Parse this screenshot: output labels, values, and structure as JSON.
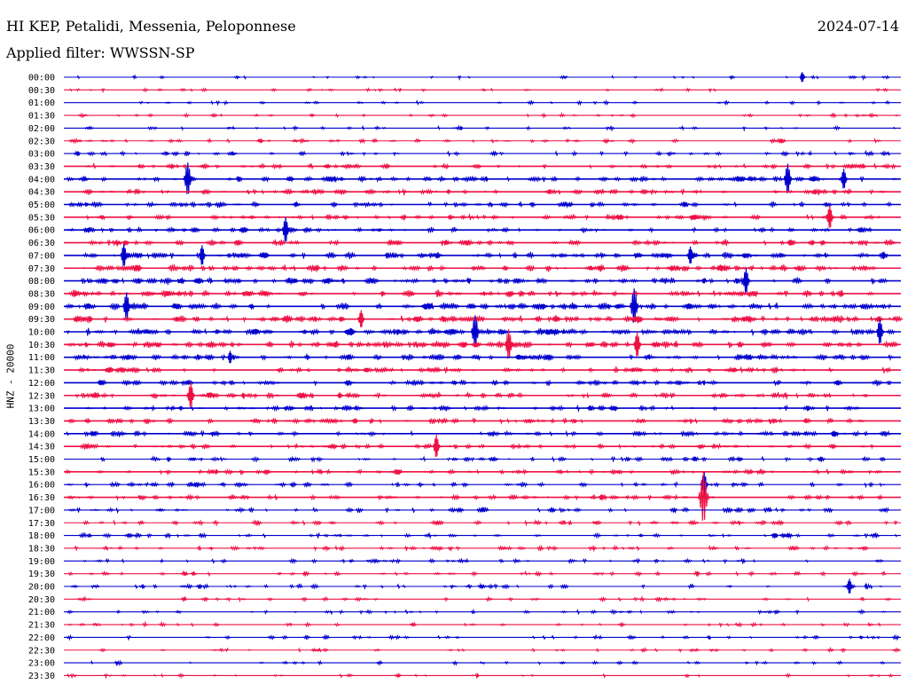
{
  "header": {
    "station": "HI KEP, Petalidi, Messenia, Peloponnese",
    "date": "2024-07-14",
    "filter": "Applied filter: WWSSN-SP"
  },
  "chart_data": {
    "type": "line",
    "title": "HI KEP, Petalidi, Messenia, Peloponnese",
    "subtitle": "Applied filter: WWSSN-SP",
    "date": "2024-07-14",
    "ylabel": "HNZ - 20000",
    "xlabel": "",
    "grid": false,
    "series_colors": [
      "#0000cc",
      "#ee1144"
    ],
    "row_labels": [
      "00:00",
      "00:30",
      "01:00",
      "01:30",
      "02:00",
      "02:30",
      "03:00",
      "03:30",
      "04:00",
      "04:30",
      "05:00",
      "05:30",
      "06:00",
      "06:30",
      "07:00",
      "07:30",
      "08:00",
      "08:30",
      "09:00",
      "09:30",
      "10:00",
      "10:30",
      "11:00",
      "11:30",
      "12:00",
      "12:30",
      "13:00",
      "13:30",
      "14:00",
      "14:30",
      "15:00",
      "15:30",
      "16:00",
      "16:30",
      "17:00",
      "17:30",
      "18:00",
      "18:30",
      "19:00",
      "19:30",
      "20:00",
      "20:30",
      "21:00",
      "21:30",
      "22:00",
      "22:30",
      "23:00",
      "23:30"
    ],
    "row_activity": [
      0.2,
      0.2,
      0.2,
      0.25,
      0.25,
      0.35,
      0.4,
      0.55,
      0.7,
      0.65,
      0.6,
      0.6,
      0.65,
      0.7,
      0.85,
      0.85,
      0.8,
      0.85,
      0.85,
      0.9,
      0.9,
      0.85,
      0.75,
      0.7,
      0.65,
      0.7,
      0.6,
      0.6,
      0.6,
      0.55,
      0.5,
      0.55,
      0.5,
      0.55,
      0.5,
      0.45,
      0.5,
      0.45,
      0.4,
      0.35,
      0.4,
      0.3,
      0.3,
      0.3,
      0.3,
      0.25,
      0.2,
      0.2
    ],
    "events": [
      {
        "row": "00:00",
        "minute": 26.5,
        "amp": 0.4
      },
      {
        "row": "05:30",
        "minute": 27.5,
        "amp": 0.9
      },
      {
        "row": "04:00",
        "minute": 4.5,
        "amp": 1.3
      },
      {
        "row": "04:00",
        "minute": 26,
        "amp": 1.2
      },
      {
        "row": "04:00",
        "minute": 28,
        "amp": 0.8
      },
      {
        "row": "06:00",
        "minute": 8,
        "amp": 1.0
      },
      {
        "row": "07:00",
        "minute": 2.2,
        "amp": 0.9
      },
      {
        "row": "07:00",
        "minute": 5,
        "amp": 0.8
      },
      {
        "row": "07:00",
        "minute": 22.5,
        "amp": 0.7
      },
      {
        "row": "08:00",
        "minute": 24.5,
        "amp": 1.0
      },
      {
        "row": "09:00",
        "minute": 2.3,
        "amp": 1.1
      },
      {
        "row": "09:00",
        "minute": 20.5,
        "amp": 1.4
      },
      {
        "row": "09:30",
        "minute": 10.7,
        "amp": 0.7
      },
      {
        "row": "10:00",
        "minute": 14.8,
        "amp": 1.3
      },
      {
        "row": "10:00",
        "minute": 29.3,
        "amp": 1.0
      },
      {
        "row": "10:30",
        "minute": 16,
        "amp": 1.2
      },
      {
        "row": "10:30",
        "minute": 20.6,
        "amp": 1.0
      },
      {
        "row": "11:00",
        "minute": 6,
        "amp": 0.5
      },
      {
        "row": "12:30",
        "minute": 4.6,
        "amp": 1.0
      },
      {
        "row": "14:30",
        "minute": 13.4,
        "amp": 0.9
      },
      {
        "row": "16:00",
        "minute": 23,
        "amp": 1.0
      },
      {
        "row": "16:30",
        "minute": 23,
        "amp": 2.0
      },
      {
        "row": "20:00",
        "minute": 28.2,
        "amp": 0.6
      }
    ]
  }
}
